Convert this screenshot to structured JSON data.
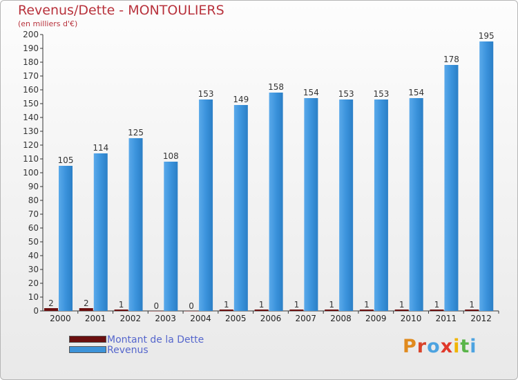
{
  "title": "Revenus/Dette - MONTOULIERS",
  "subtitle": "(en milliers d'€)",
  "logo": "Proxiti",
  "colors": {
    "dette": "#6b0f0f",
    "revenus": "#3d93d9",
    "title": "#b8323c"
  },
  "chart_data": {
    "type": "bar",
    "categories": [
      "2000",
      "2001",
      "2002",
      "2003",
      "2004",
      "2005",
      "2006",
      "2007",
      "2008",
      "2009",
      "2010",
      "2011",
      "2012"
    ],
    "series": [
      {
        "name": "Montant de la Dette",
        "values": [
          2,
          2,
          1,
          0,
          0,
          1,
          1,
          1,
          1,
          1,
          1,
          1,
          1
        ]
      },
      {
        "name": "Revenus",
        "values": [
          105,
          114,
          125,
          108,
          153,
          149,
          158,
          154,
          153,
          153,
          154,
          178,
          195
        ]
      }
    ],
    "ylim": [
      0,
      200
    ],
    "yticks": [
      0,
      10,
      20,
      30,
      40,
      50,
      60,
      70,
      80,
      90,
      100,
      110,
      120,
      130,
      140,
      150,
      160,
      170,
      180,
      190,
      200
    ],
    "grid": false,
    "legend": "bottom-left"
  }
}
